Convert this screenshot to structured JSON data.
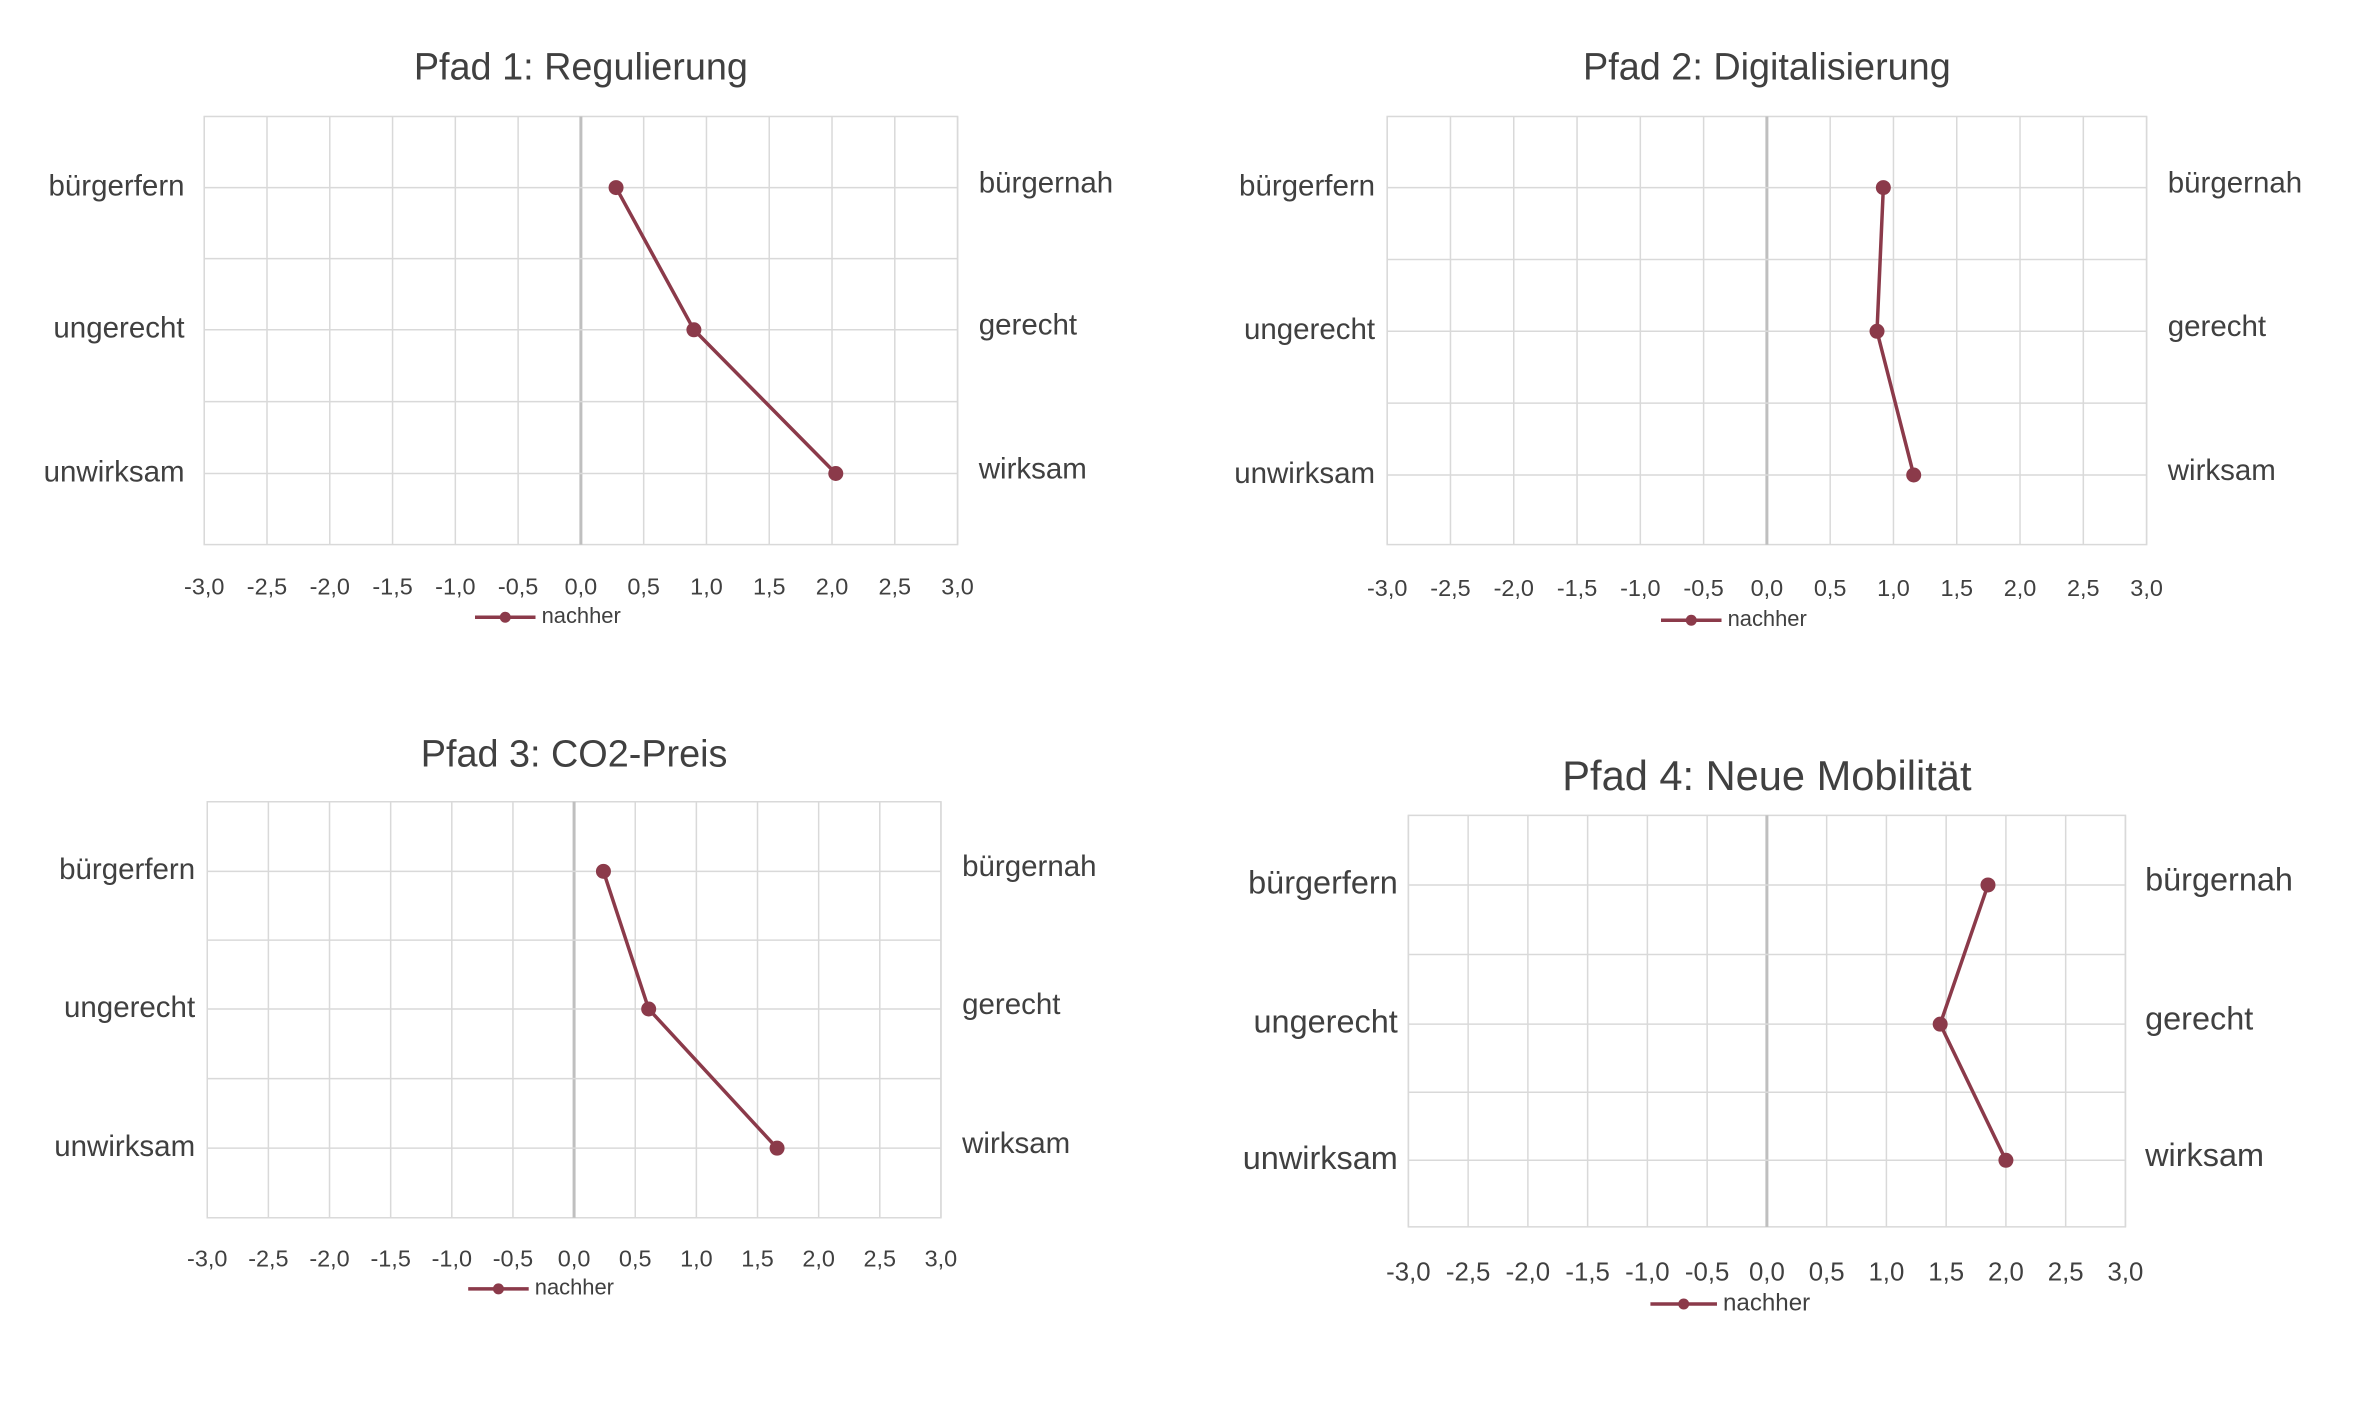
{
  "series_color": "#8b3a4a",
  "gridline_color": "#d9d9d9",
  "zero_line_color": "#bfbfbf",
  "chart_data": [
    {
      "type": "line",
      "title": "Pfad 1: Regulierung",
      "xlim": [
        -3.0,
        3.0
      ],
      "x_ticks": [
        "-3,0",
        "-2,5",
        "-2,0",
        "-1,5",
        "-1,0",
        "-0,5",
        "0,0",
        "0,5",
        "1,0",
        "1,5",
        "2,0",
        "2,5",
        "3,0"
      ],
      "left_labels": [
        "bürgerfern",
        "ungerecht",
        "unwirksam"
      ],
      "right_labels": [
        "bürgernah",
        "gerecht",
        "wirksam"
      ],
      "grid": true,
      "legend_position": "bottom",
      "series": [
        {
          "name": "nachher",
          "values": [
            0.28,
            0.9,
            2.03
          ]
        }
      ]
    },
    {
      "type": "line",
      "title": "Pfad 2: Digitalisierung",
      "xlim": [
        -3.0,
        3.0
      ],
      "x_ticks": [
        "-3,0",
        "-2,5",
        "-2,0",
        "-1,5",
        "-1,0",
        "-0,5",
        "0,0",
        "0,5",
        "1,0",
        "1,5",
        "2,0",
        "2,5",
        "3,0"
      ],
      "left_labels": [
        "bürgerfern",
        "ungerecht",
        "unwirksam"
      ],
      "right_labels": [
        "bürgernah",
        "gerecht",
        "wirksam"
      ],
      "grid": true,
      "legend_position": "bottom",
      "series": [
        {
          "name": "nachher",
          "values": [
            0.92,
            0.87,
            1.16
          ]
        }
      ]
    },
    {
      "type": "line",
      "title": "Pfad 3: CO2-Preis",
      "xlim": [
        -3.0,
        3.0
      ],
      "x_ticks": [
        "-3,0",
        "-2,5",
        "-2,0",
        "-1,5",
        "-1,0",
        "-0,5",
        "0,0",
        "0,5",
        "1,0",
        "1,5",
        "2,0",
        "2,5",
        "3,0"
      ],
      "left_labels": [
        "bürgerfern",
        "ungerecht",
        "unwirksam"
      ],
      "right_labels": [
        "bürgernah",
        "gerecht",
        "wirksam"
      ],
      "grid": true,
      "legend_position": "bottom",
      "series": [
        {
          "name": "nachher",
          "values": [
            0.24,
            0.61,
            1.66
          ]
        }
      ]
    },
    {
      "type": "line",
      "title": "Pfad 4: Neue Mobilität",
      "xlim": [
        -3.0,
        3.0
      ],
      "x_ticks": [
        "-3,0",
        "-2,5",
        "-2,0",
        "-1,5",
        "-1,0",
        "-0,5",
        "0,0",
        "0,5",
        "1,0",
        "1,5",
        "2,0",
        "2,5",
        "3,0"
      ],
      "left_labels": [
        "bürgerfern",
        "ungerecht",
        "unwirksam"
      ],
      "right_labels": [
        "bürgernah",
        "gerecht",
        "wirksam"
      ],
      "grid": true,
      "legend_position": "bottom",
      "series": [
        {
          "name": "nachher",
          "values": [
            1.85,
            1.45,
            2.0
          ]
        }
      ]
    }
  ]
}
